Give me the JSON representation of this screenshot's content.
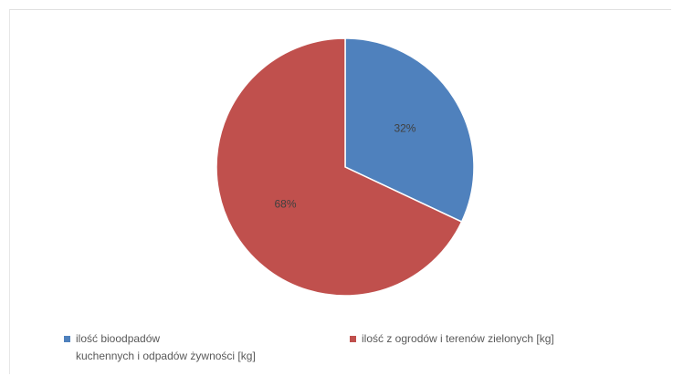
{
  "chart_data": {
    "type": "pie",
    "title": "",
    "start_angle_deg": 0,
    "direction": "clockwise",
    "slices": [
      {
        "label": "ilość bioodpadów kuchennych i odpadów żywności [kg]",
        "value": 32,
        "display": "32%",
        "color": "#4F81BD"
      },
      {
        "label": "ilość z ogrodów i terenów zielonych [kg]",
        "value": 68,
        "display": "68%",
        "color": "#C0504D"
      }
    ],
    "legend_position": "bottom"
  },
  "legend": {
    "items": [
      {
        "line1": "ilość bioodpadów",
        "line2": "kuchennych i odpadów żywności [kg]",
        "color": "#4F81BD"
      },
      {
        "line1": "ilość z ogrodów i terenów zielonych [kg]",
        "line2": "",
        "color": "#C0504D"
      }
    ]
  }
}
